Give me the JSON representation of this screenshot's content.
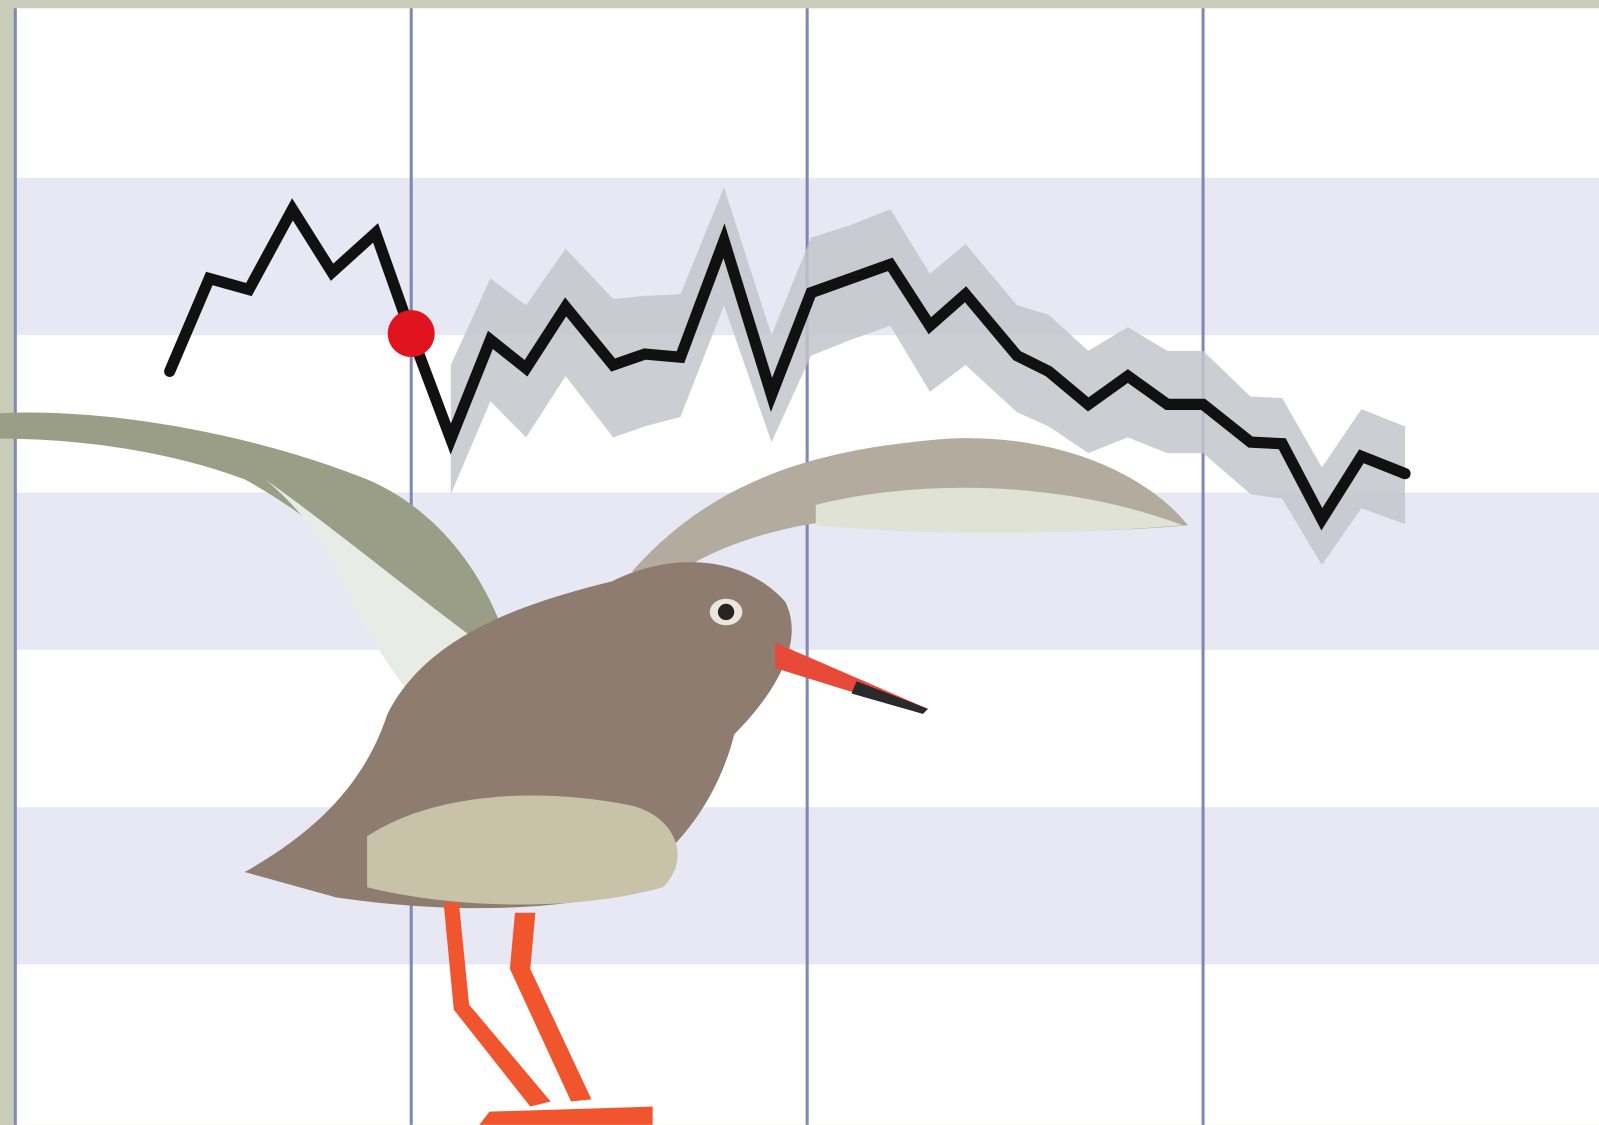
{
  "chart_data": {
    "type": "line",
    "x": [
      0.39,
      0.49,
      0.59,
      0.7,
      0.8,
      0.91,
      1.0,
      1.1,
      1.2,
      1.29,
      1.39,
      1.51,
      1.59,
      1.68,
      1.79,
      1.91,
      2.01,
      2.11,
      2.21,
      2.31,
      2.4,
      2.53,
      2.61,
      2.71,
      2.81,
      2.91,
      3.0,
      3.12,
      3.2,
      3.3,
      3.4,
      3.51
    ],
    "series": [
      {
        "color": "#111111",
        "values": [
          4.77,
          5.36,
          5.29,
          5.8,
          5.4,
          5.65,
          5.01,
          4.34,
          4.97,
          4.79,
          5.18,
          4.81,
          4.88,
          4.86,
          5.6,
          4.62,
          5.27,
          5.36,
          5.45,
          5.06,
          5.26,
          4.87,
          4.77,
          4.56,
          4.74,
          4.56,
          4.56,
          4.32,
          4.31,
          3.83,
          4.23,
          4.12
        ]
      }
    ],
    "band": {
      "color": "#c4c4cc",
      "upper": [
        null,
        null,
        null,
        null,
        null,
        null,
        null,
        4.81,
        5.36,
        5.19,
        5.55,
        5.23,
        5.25,
        5.26,
        5.94,
        5.0,
        5.62,
        5.7,
        5.8,
        5.39,
        5.58,
        5.19,
        5.13,
        4.9,
        5.05,
        4.9,
        4.9,
        4.61,
        4.6,
        4.16,
        4.53,
        4.42
      ],
      "lower": [
        null,
        null,
        null,
        null,
        null,
        null,
        null,
        3.99,
        4.58,
        4.35,
        4.74,
        4.35,
        4.42,
        4.48,
        5.19,
        4.32,
        4.87,
        4.97,
        5.06,
        4.64,
        4.81,
        4.51,
        4.42,
        4.25,
        4.35,
        4.25,
        4.25,
        3.99,
        3.96,
        3.54,
        3.9,
        3.8
      ]
    },
    "highlight_index": 6,
    "highlight_color": "#e0141e",
    "xlim": [
      0,
      4
    ],
    "xticks": [
      0,
      1,
      2,
      3
    ],
    "ylim": [
      0,
      7
    ],
    "yticks": [
      1,
      2,
      3,
      4,
      5,
      6
    ],
    "grid": "bands",
    "grid_color": "#e8e8f4",
    "xgrid_color": "#8088b8"
  }
}
